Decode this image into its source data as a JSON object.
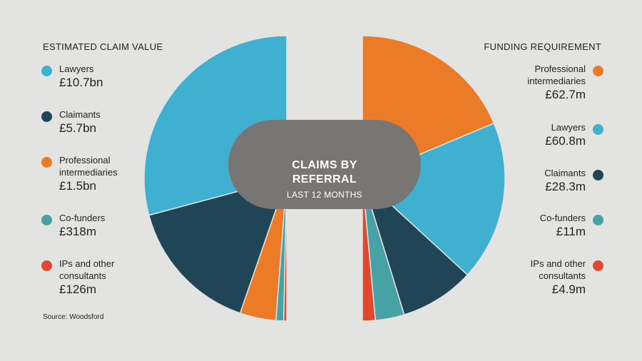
{
  "left_title": "ESTIMATED CLAIM VALUE",
  "right_title": "FUNDING REQUIREMENT",
  "center": {
    "line1": "CLAIMS BY",
    "line2": "REFERRAL",
    "subtitle": "LAST 12 MONTHS"
  },
  "source": "Source: Woodsford",
  "colors": {
    "lawyers": "#40b0d1",
    "claimants": "#1f4557",
    "professional_intermediaries": "#eb7b27",
    "co_funders": "#47a2a6",
    "ips_and_other": "#e0492e",
    "center_fill": "#777674",
    "background": "#e3e3e1"
  },
  "legend_left": [
    {
      "label": "Lawyers",
      "value": "£10.7bn",
      "color": "#40b0d1"
    },
    {
      "label": "Claimants",
      "value": "£5.7bn",
      "color": "#1f4557"
    },
    {
      "label": "Professional\nintermediaries",
      "value": "£1.5bn",
      "color": "#eb7b27"
    },
    {
      "label": "Co-funders",
      "value": "£318m",
      "color": "#47a2a6"
    },
    {
      "label": "IPs and other\nconsultants",
      "value": "£126m",
      "color": "#e0492e"
    }
  ],
  "legend_right": [
    {
      "label": "Professional\nintermediaries",
      "value": "£62.7m",
      "color": "#eb7b27"
    },
    {
      "label": "Lawyers",
      "value": "£60.8m",
      "color": "#40b0d1"
    },
    {
      "label": "Claimants",
      "value": "£28.3m",
      "color": "#1f4557"
    },
    {
      "label": "Co-funders",
      "value": "£11m",
      "color": "#47a2a6"
    },
    {
      "label": "IPs and other\nconsultants",
      "value": "£4.9m",
      "color": "#e0492e"
    }
  ],
  "chart_data": [
    {
      "type": "pie",
      "title": "ESTIMATED CLAIM VALUE",
      "unit": "£",
      "categories": [
        "Lawyers",
        "Claimants",
        "Professional intermediaries",
        "Co-funders",
        "IPs and other consultants"
      ],
      "values": [
        10700000000,
        5700000000,
        1500000000,
        318000000,
        126000000
      ],
      "value_labels": [
        "£10.7bn",
        "£5.7bn",
        "£1.5bn",
        "£318m",
        "£126m"
      ],
      "colors": [
        "#40b0d1",
        "#1f4557",
        "#eb7b27",
        "#47a2a6",
        "#e0492e"
      ],
      "layout": "left half-donut"
    },
    {
      "type": "pie",
      "title": "FUNDING REQUIREMENT",
      "unit": "£",
      "categories": [
        "Professional intermediaries",
        "Lawyers",
        "Claimants",
        "Co-funders",
        "IPs and other consultants"
      ],
      "values": [
        62700000,
        60800000,
        28300000,
        11000000,
        4900000
      ],
      "value_labels": [
        "£62.7m",
        "£60.8m",
        "£28.3m",
        "£11m",
        "£4.9m"
      ],
      "colors": [
        "#eb7b27",
        "#40b0d1",
        "#1f4557",
        "#47a2a6",
        "#e0492e"
      ],
      "layout": "right half-donut"
    }
  ]
}
